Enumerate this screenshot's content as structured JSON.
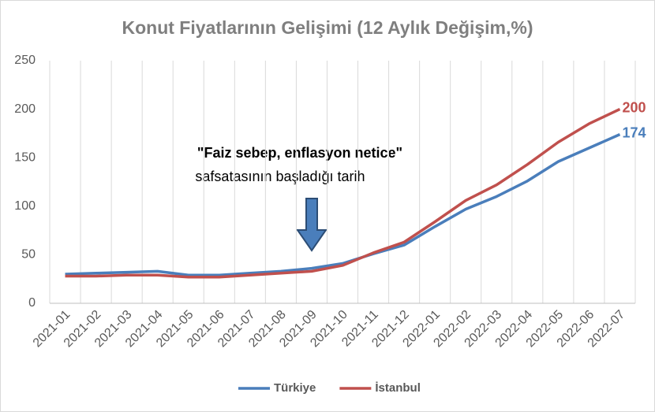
{
  "chart_data": {
    "type": "line",
    "title": "Konut Fiyatlarının  Gelişimi  (12 Aylık Değişim,%)",
    "categories": [
      "2021-01",
      "2021-02",
      "2021-03",
      "2021-04",
      "2021-05",
      "2021-06",
      "2021-07",
      "2021-08",
      "2021-09",
      "2021-10",
      "2021-11",
      "2021-12",
      "2022-01",
      "2022-02",
      "2022-03",
      "2022-04",
      "2022-05",
      "2022-06",
      "2022-07"
    ],
    "series": [
      {
        "name": "Türkiye",
        "color": "#4a7ebb",
        "values": [
          30,
          31,
          32,
          33,
          29,
          29,
          31,
          33,
          36,
          41,
          51,
          60,
          79,
          97,
          110,
          126,
          146,
          160,
          174
        ]
      },
      {
        "name": "İstanbul",
        "color": "#c0504d",
        "values": [
          28,
          28,
          29,
          29,
          27,
          27,
          29,
          31,
          33,
          39,
          52,
          63,
          84,
          106,
          122,
          143,
          166,
          185,
          200
        ]
      }
    ],
    "ylim": [
      0,
      250
    ],
    "yticks": [
      0,
      50,
      100,
      150,
      200,
      250
    ],
    "annotations": [
      "\"Faiz sebep, enflasyon netice\"",
      "safsatasının başladığı tarih"
    ],
    "legend": "bottom"
  }
}
